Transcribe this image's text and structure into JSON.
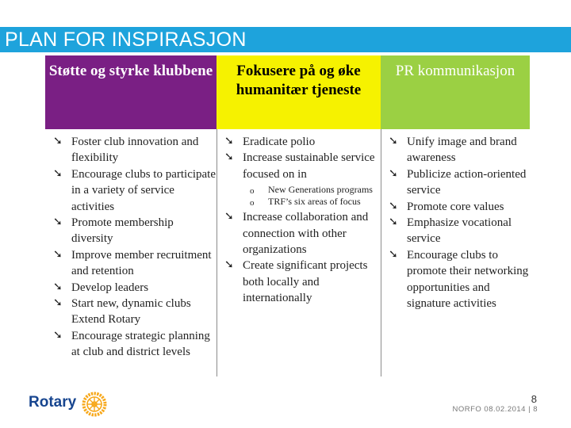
{
  "slide": {
    "title": "PLAN FOR INSPIRASJON",
    "page_number": "8",
    "footer": "NORFO 08.02.2014 | 8"
  },
  "columns": [
    {
      "heading": "Støtte og styrke klubbene",
      "bullets": [
        {
          "text": "Foster club innovation and flexibility"
        },
        {
          "text": "Encourage clubs to participate in a variety of service activities"
        },
        {
          "text": "Promote membership diversity"
        },
        {
          "text": "Improve member recruitment and retention"
        },
        {
          "text": "Develop leaders"
        },
        {
          "text": "Start new, dynamic clubs Extend Rotary"
        },
        {
          "text": "Encourage strategic planning at club and district levels"
        }
      ]
    },
    {
      "heading": "Fokusere på og øke humanitær tjeneste",
      "bullets": [
        {
          "text": "Eradicate polio"
        },
        {
          "text": "Increase sustainable service focused on in",
          "sub": [
            "New Generations programs",
            "TRF’s six areas of focus"
          ]
        },
        {
          "text": "Increase collaboration and connection with other organizations"
        },
        {
          "text": "Create significant projects both locally and internationally"
        }
      ]
    },
    {
      "heading": "PR kommunikasjon",
      "bullets": [
        {
          "text": "Unify image and brand awareness"
        },
        {
          "text": "Publicize action-oriented service"
        },
        {
          "text": "Promote core values"
        },
        {
          "text": "Emphasize vocational service"
        },
        {
          "text": "Encourage clubs to promote their networking opportunities and signature activities"
        }
      ]
    }
  ],
  "logo": {
    "text": "Rotary",
    "icon": "rotary-wheel-icon"
  },
  "colors": {
    "title_bar": "#1ea3dc",
    "col1_head": "#7a1f84",
    "col2_head": "#f6f200",
    "col3_head": "#9bd043",
    "rotary_blue": "#17458f",
    "rotary_gold": "#f7a81b"
  }
}
